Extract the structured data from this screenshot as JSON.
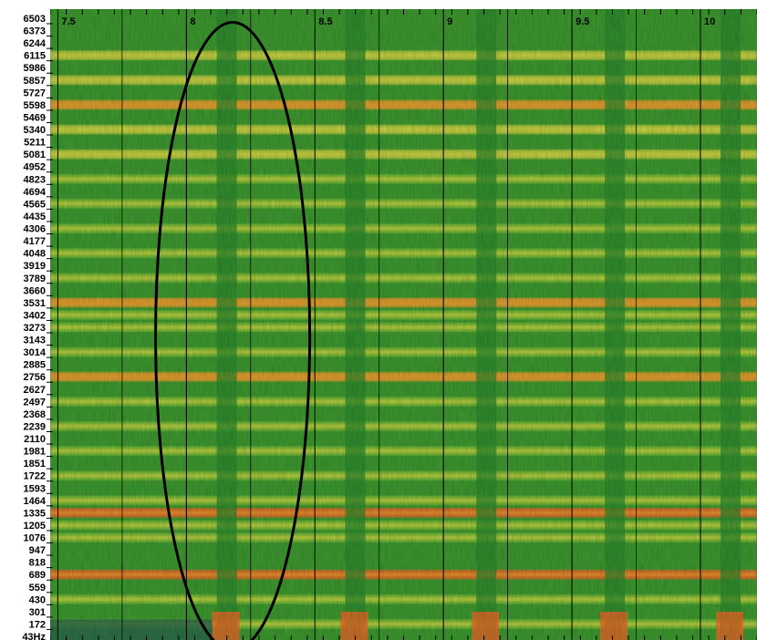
{
  "chart_data": {
    "type": "heatmap",
    "title": "",
    "xlabel": "",
    "ylabel": "",
    "x_ticks": [
      "7.5",
      "8",
      "8.5",
      "9",
      "9.5",
      "10"
    ],
    "x_tick_values": [
      7.5,
      8.0,
      8.5,
      9.0,
      9.5,
      10.0
    ],
    "xlim": [
      7.47,
      10.22
    ],
    "x_minor_step": 0.0625,
    "y_ticks": [
      "6503",
      "6373",
      "6244",
      "6115",
      "5986",
      "5857",
      "5727",
      "5598",
      "5469",
      "5340",
      "5211",
      "5081",
      "4952",
      "4823",
      "4694",
      "4565",
      "4435",
      "4306",
      "4177",
      "4048",
      "3919",
      "3789",
      "3660",
      "3531",
      "3402",
      "3273",
      "3143",
      "3014",
      "2885",
      "2756",
      "2627",
      "2497",
      "2368",
      "2239",
      "2110",
      "1981",
      "1851",
      "1722",
      "1593",
      "1464",
      "1335",
      "1205",
      "1076",
      "947",
      "818",
      "689",
      "559",
      "430",
      "301",
      "172",
      "43Hz"
    ],
    "ylim": [
      43,
      6503
    ],
    "harmonics_hz": [
      172,
      430,
      689,
      1076,
      1205,
      1335,
      1464,
      1722,
      1981,
      2239,
      2497,
      2756,
      3014,
      3273,
      3402,
      3531,
      3789,
      4048,
      4306,
      4565,
      4823,
      5081,
      5340,
      5598,
      5857,
      6115
    ],
    "strong_harmonics_hz": [
      689,
      1335,
      3531,
      2756,
      5598
    ],
    "onsets_s": [
      8.15,
      8.65,
      9.16,
      9.66,
      10.11
    ],
    "colormap": [
      "#2e8a2e",
      "#4ea82c",
      "#8cc63a",
      "#d8d844",
      "#f0a030",
      "#f06a28"
    ],
    "annotation": {
      "shape": "ellipse",
      "center_x": 8.18,
      "x_radius": 0.3,
      "center_hz": 3180,
      "hz_radius": 3280
    }
  }
}
